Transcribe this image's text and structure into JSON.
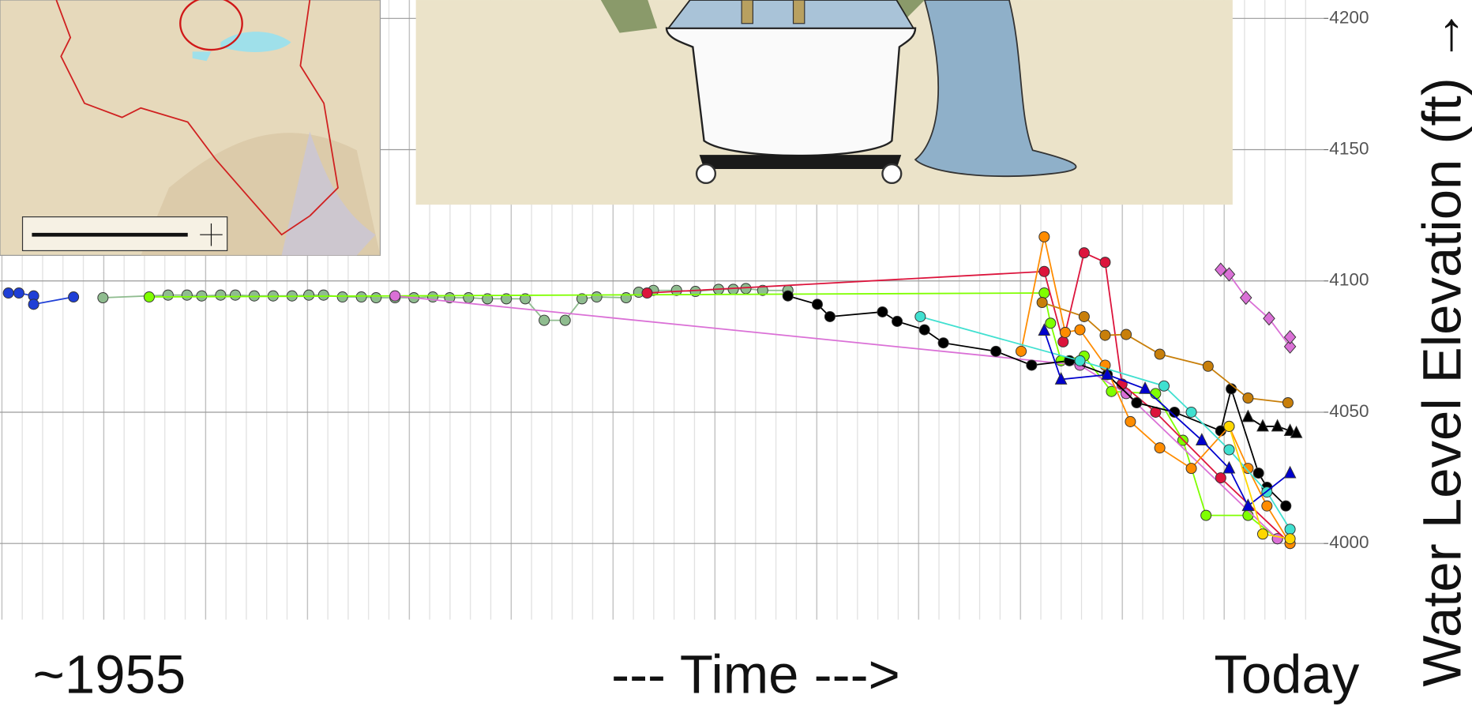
{
  "chart_data": {
    "type": "line",
    "x_start_label": "~1955",
    "x_label": "--- Time --->",
    "x_end_label": "Today",
    "y_label": "Water Level Elevation (ft) →",
    "xlim": [
      1953,
      2016
    ],
    "ylim": [
      3971,
      4207
    ],
    "yticks": [
      4000,
      4050,
      4100,
      4150,
      4200
    ],
    "grid": true,
    "series": [
      {
        "color": "#1f3fd6",
        "marker": "circle",
        "x": [
          1953.4,
          1953.9,
          1954.6,
          1954.6,
          1956.5
        ],
        "values": [
          4095.4,
          4095.4,
          4094.3,
          4091.1,
          4093.9
        ]
      },
      {
        "color": "#8fbc8f",
        "marker": "circle",
        "x": [
          1957.9,
          1961.0,
          1961.9,
          1962.6,
          1963.5,
          1964.2,
          1965.1,
          1966.0,
          1966.9,
          1967.7,
          1968.4,
          1969.3,
          1970.2,
          1970.9,
          1971.8,
          1972.7,
          1973.6,
          1974.4,
          1975.3,
          1976.2,
          1977.1,
          1978.0,
          1978.9,
          1979.9,
          1980.7,
          1981.4,
          1982.8,
          1983.4,
          1984.1,
          1985.2,
          1986.1,
          1987.2,
          1987.9,
          1988.5,
          1989.3,
          1990.5
        ],
        "values": [
          4093.6,
          4094.6,
          4094.6,
          4094.3,
          4094.6,
          4094.6,
          4094.3,
          4094.3,
          4094.3,
          4094.6,
          4094.6,
          4093.9,
          4093.9,
          4093.6,
          4093.6,
          4093.6,
          4093.9,
          4093.6,
          4093.6,
          4093.2,
          4093.2,
          4093.2,
          4085.0,
          4085.0,
          4093.2,
          4093.9,
          4093.6,
          4095.7,
          4096.4,
          4096.4,
          4096.0,
          4096.8,
          4096.8,
          4097.1,
          4096.4,
          4096.4
        ]
      },
      {
        "color": "#7fff00",
        "marker": "circle",
        "x": [
          1960.1,
          2002.7,
          2003.0,
          2003.5,
          2004.6,
          2005.9,
          2008.0,
          2009.3,
          2010.4,
          2012.4,
          2013.8
        ],
        "values": [
          4093.9,
          4095.4,
          4083.9,
          4069.6,
          4071.4,
          4057.9,
          4057.1,
          4039.3,
          4010.7,
          4010.7,
          4001.8
        ]
      },
      {
        "color": "#da70d6",
        "marker": "circle",
        "x": [
          1971.8,
          2004.4,
          2006.6,
          2013.8
        ],
        "values": [
          4094.3,
          4067.9,
          4057.1,
          4001.8
        ]
      },
      {
        "color": "#da70d6",
        "marker": "diamond",
        "x": [
          2011.1,
          2011.5,
          2012.3,
          2013.4,
          2014.4,
          2014.4
        ],
        "values": [
          4104.3,
          4102.5,
          4093.6,
          4085.7,
          4075.0,
          4078.6
        ]
      },
      {
        "color": "#dc143c",
        "marker": "circle",
        "x": [
          1983.8,
          2002.7,
          2003.6,
          2004.6,
          2005.6,
          2006.4,
          2008.0,
          2011.1,
          2014.4
        ],
        "values": [
          4095.4,
          4103.6,
          4076.8,
          4110.7,
          4107.1,
          4060.7,
          4050.0,
          4025.0,
          4000.0
        ]
      },
      {
        "color": "#000000",
        "marker": "circle",
        "x": [
          1990.5,
          1991.9,
          1992.5,
          1995.0,
          1995.7,
          1997.0,
          1997.9,
          2000.4,
          2002.1,
          2003.9,
          2005.7,
          2007.1,
          2008.9,
          2011.1,
          2011.6,
          2012.9,
          2013.3,
          2014.2
        ],
        "values": [
          4094.3,
          4091.1,
          4086.4,
          4088.2,
          4084.6,
          4081.4,
          4076.4,
          4073.2,
          4067.9,
          4069.6,
          4064.3,
          4053.6,
          4050.0,
          4042.9,
          4058.9,
          4026.8,
          4021.4,
          4014.3
        ]
      },
      {
        "color": "#c87f0a",
        "marker": "circle",
        "x": [
          2002.6,
          2004.6,
          2005.6,
          2006.6,
          2008.2,
          2010.5,
          2012.4,
          2014.3
        ],
        "values": [
          4091.8,
          4086.4,
          4079.3,
          4079.6,
          4072.1,
          4067.5,
          4055.4,
          4053.6
        ]
      },
      {
        "color": "#ff8c00",
        "marker": "circle",
        "x": [
          2001.6,
          2002.7,
          2003.7,
          2004.4,
          2005.6,
          2006.8,
          2008.2,
          2009.7,
          2011.5,
          2012.4,
          2013.3,
          2014.4
        ],
        "values": [
          4073.2,
          4116.8,
          4080.4,
          4081.4,
          4067.9,
          4046.4,
          4036.4,
          4028.6,
          4044.6,
          4028.6,
          4014.3,
          4000.0
        ]
      },
      {
        "color": "#40e0d0",
        "marker": "circle",
        "x": [
          1996.8,
          2004.4,
          2008.4,
          2009.7,
          2011.5,
          2013.3,
          2014.4
        ],
        "values": [
          4086.4,
          4069.6,
          4060.0,
          4050.0,
          4035.7,
          4019.6,
          4005.4
        ]
      },
      {
        "color": "#0000cd",
        "marker": "triangle",
        "x": [
          2002.7,
          2003.5,
          2005.7,
          2007.5,
          2010.2,
          2011.5,
          2012.4,
          2014.4
        ],
        "values": [
          4081.1,
          4062.5,
          4064.3,
          4058.9,
          4039.3,
          4028.6,
          4014.3,
          4026.8
        ]
      },
      {
        "color": "#000000",
        "marker": "triangle",
        "x": [
          2012.4,
          2013.1,
          2013.8,
          2014.4,
          2014.7
        ],
        "values": [
          4048.2,
          4044.6,
          4044.6,
          4042.9,
          4042.1
        ]
      },
      {
        "color": "#ffd700",
        "marker": "circle",
        "x": [
          2011.5,
          2013.1,
          2014.4
        ],
        "values": [
          4044.6,
          4003.6,
          4001.8
        ]
      }
    ]
  }
}
